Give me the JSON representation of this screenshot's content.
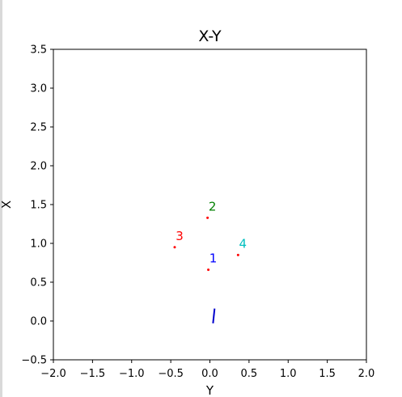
{
  "chart_data": {
    "type": "scatter",
    "title": "X-Y",
    "xlabel": "Y",
    "ylabel": "X",
    "xlim": [
      -2.0,
      2.0
    ],
    "ylim": [
      -0.5,
      3.5
    ],
    "xticks": [
      "−2.0",
      "−1.5",
      "−1.0",
      "−0.5",
      "0.0",
      "0.5",
      "1.0",
      "1.5",
      "2.0"
    ],
    "xtick_values": [
      -2.0,
      -1.5,
      -1.0,
      -0.5,
      0.0,
      0.5,
      1.0,
      1.5,
      2.0
    ],
    "yticks": [
      "−0.5",
      "0.0",
      "0.5",
      "1.0",
      "1.5",
      "2.0",
      "2.5",
      "3.0",
      "3.5"
    ],
    "ytick_values": [
      -0.5,
      0.0,
      0.5,
      1.0,
      1.5,
      2.0,
      2.5,
      3.0,
      3.5
    ],
    "grid": false,
    "points": [
      {
        "label": "1",
        "x": -0.02,
        "y": 0.66,
        "color": "#0000ff"
      },
      {
        "label": "2",
        "x": -0.03,
        "y": 1.33,
        "color": "#008000"
      },
      {
        "label": "3",
        "x": -0.45,
        "y": 0.95,
        "color": "#ff0000"
      },
      {
        "label": "4",
        "x": 0.36,
        "y": 0.85,
        "color": "#00bfbf"
      }
    ],
    "point_color": "#ff0000",
    "segment": {
      "x": [
        0.06,
        0.04
      ],
      "y": [
        0.16,
        -0.03
      ],
      "color": "#0000cd"
    }
  }
}
